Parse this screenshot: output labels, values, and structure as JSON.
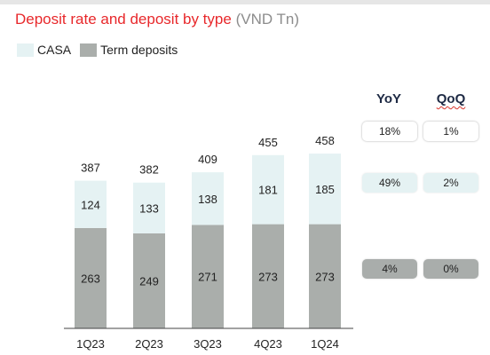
{
  "title": "Deposit rate and deposit by type",
  "unit": "(VND Tn)",
  "colors": {
    "casa": "#e5f2f3",
    "term": "#aaaeab",
    "title": "#e8282b",
    "unit": "#8c8c8c",
    "header": "#1e2a44"
  },
  "legend": [
    {
      "label": "CASA",
      "color": "#e5f2f3"
    },
    {
      "label": "Term deposits",
      "color": "#aaaeab"
    }
  ],
  "chart_data": {
    "type": "bar",
    "stacked": true,
    "title": "Deposit rate and deposit by type",
    "categories": [
      "1Q23",
      "2Q23",
      "3Q23",
      "4Q23",
      "1Q24"
    ],
    "series": [
      {
        "name": "Term deposits",
        "values": [
          263,
          249,
          271,
          273,
          273
        ]
      },
      {
        "name": "CASA",
        "values": [
          124,
          133,
          138,
          181,
          185
        ]
      }
    ],
    "totals": [
      387,
      382,
      409,
      455,
      458
    ],
    "ylim": [
      0,
      500
    ],
    "grid": false,
    "legend": "top-left"
  },
  "growth": {
    "headers": {
      "yoy": "YoY",
      "qoq": "QoQ"
    },
    "rows": [
      {
        "name": "total",
        "yoy": "18%",
        "qoq": "1%",
        "style": "white"
      },
      {
        "name": "casa",
        "yoy": "49%",
        "qoq": "2%",
        "style": "light"
      },
      {
        "name": "term",
        "yoy": "4%",
        "qoq": "0%",
        "style": "grey"
      }
    ]
  }
}
